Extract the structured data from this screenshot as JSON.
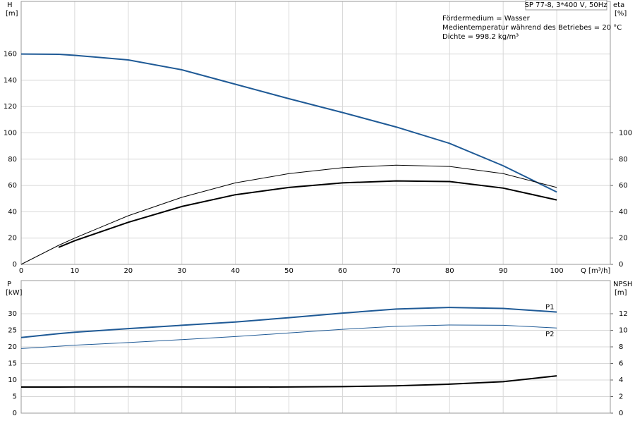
{
  "chart_data": [
    {
      "type": "line",
      "title": "SP 77-8, 3*400 V, 50Hz",
      "annotations": [
        "Fördermedium = Wasser",
        "Medientemperatur während des Betriebes = 20 °C",
        "Dichte = 998.2 kg/m³"
      ],
      "ylabel": "H",
      "yunit": "[m]",
      "y2label": "eta",
      "y2unit": "[%]",
      "xlabel": "Q [m³/h]",
      "x": [
        0,
        7,
        10,
        20,
        30,
        40,
        50,
        60,
        70,
        80,
        90,
        100
      ],
      "xlim": [
        0,
        110
      ],
      "xticks": [
        0,
        10,
        20,
        30,
        40,
        50,
        60,
        70,
        80,
        90,
        100
      ],
      "show_xtick_labels": true,
      "ylim": [
        0,
        200
      ],
      "yticks": [
        0,
        20,
        40,
        60,
        80,
        100,
        120,
        140,
        160
      ],
      "y2lim": [
        0,
        200
      ],
      "y2ticks": [
        0,
        20,
        40,
        60,
        80,
        100
      ],
      "grid": true,
      "series": [
        {
          "color": "#1f5a96",
          "width": 2,
          "values": [
            160,
            159.8,
            159,
            155.5,
            148,
            137,
            126,
            115.5,
            104.5,
            92,
            75,
            55
          ]
        },
        {
          "color": "#000000",
          "width": 1,
          "axis": "y2",
          "values": [
            0,
            14.5,
            20,
            37,
            51,
            62,
            69,
            73.5,
            75.5,
            74.5,
            69,
            58.5
          ]
        },
        {
          "color": "#000000",
          "width": 2,
          "axis": "y2",
          "values": [
            null,
            13,
            18,
            32,
            44,
            53,
            58.5,
            62,
            63.5,
            63,
            58,
            49
          ]
        }
      ]
    },
    {
      "type": "line",
      "ylabel": "P",
      "yunit": "[kW]",
      "y2label": "NPSH",
      "y2unit": "[m]",
      "x": [
        0,
        7,
        10,
        20,
        30,
        40,
        50,
        60,
        70,
        80,
        90,
        100
      ],
      "xlim": [
        0,
        110
      ],
      "xticks": [
        0,
        10,
        20,
        30,
        40,
        50,
        60,
        70,
        80,
        90,
        100
      ],
      "show_xtick_labels": false,
      "ylim": [
        0,
        40
      ],
      "yticks": [
        0,
        5,
        10,
        15,
        20,
        25,
        30
      ],
      "y2lim": [
        0,
        16
      ],
      "y2ticks": [
        0,
        2,
        4,
        6,
        8,
        10,
        12
      ],
      "grid": true,
      "series": [
        {
          "name": "P1",
          "color": "#1f5a96",
          "width": 2,
          "values": [
            22.8,
            24,
            24.4,
            25.5,
            26.5,
            27.5,
            28.8,
            30.2,
            31.4,
            31.9,
            31.6,
            30.5
          ]
        },
        {
          "name": "P2",
          "color": "#1f5a96",
          "width": 1,
          "values": [
            19.5,
            20.2,
            20.5,
            21.3,
            22.2,
            23.1,
            24.2,
            25.3,
            26.2,
            26.6,
            26.5,
            25.7
          ]
        },
        {
          "color": "#000000",
          "width": 2,
          "axis": "y2",
          "values": [
            3.15,
            3.15,
            3.16,
            3.17,
            3.16,
            3.15,
            3.16,
            3.2,
            3.3,
            3.5,
            3.8,
            4.5
          ]
        }
      ]
    }
  ]
}
